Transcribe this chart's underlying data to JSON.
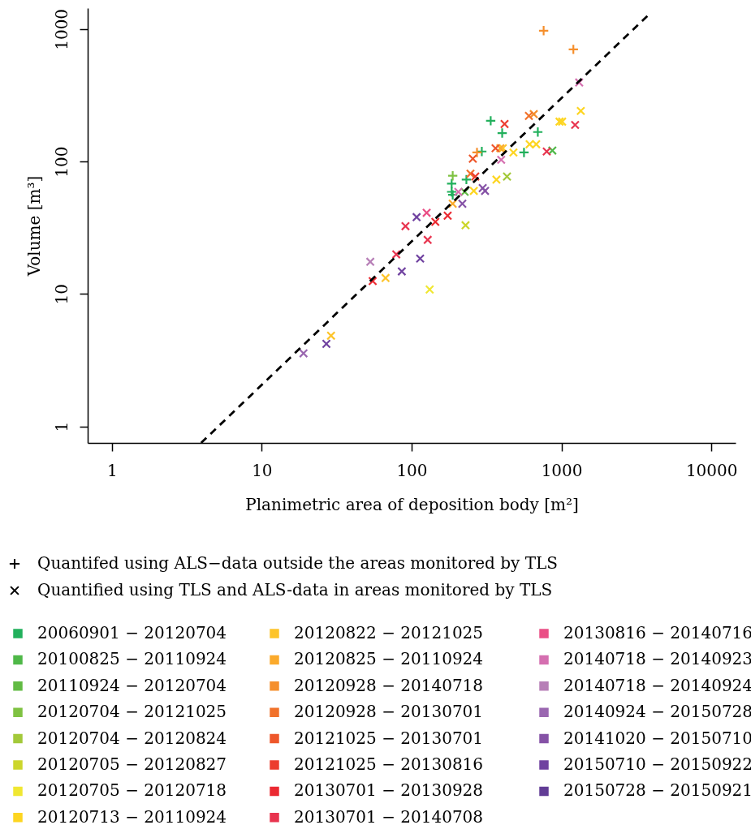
{
  "chart_data": {
    "type": "scatter",
    "xlabel": "Planimetric area of deposition body [m²]",
    "ylabel": "Volume [m³]",
    "log": "xy",
    "xlim": [
      0.69,
      14500
    ],
    "ylim": [
      0.75,
      1440
    ],
    "xticks": [
      1,
      10,
      100,
      1000,
      10000
    ],
    "yticks": [
      1,
      10,
      100,
      1000
    ],
    "legend": "bottom",
    "series": [
      {
        "name": "Quantifed using ALS−data outside the areas monitored by TLS",
        "color": "#000000",
        "marker": "cross"
      },
      {
        "name": "Quantified using TLS and ALS-data in areas monitored by TLS",
        "color": "#000000",
        "marker": "x"
      },
      {
        "name": "20060901 − 20120704",
        "color": "#22b05c",
        "marker": "cross",
        "x": [
          337,
          402,
          695,
          562,
          294,
          185,
          185,
          188,
          232
        ],
        "values": [
          203,
          164,
          167,
          117,
          119,
          68,
          59,
          56,
          73
        ]
      },
      {
        "name": "20100825 − 20110924",
        "color": "#4fb848",
        "marker": "x",
        "x": [
          869
        ],
        "values": [
          121
        ]
      },
      {
        "name": "20110924 − 20120704",
        "color": "#62bb44",
        "marker": "x",
        "x": [
          226
        ],
        "values": [
          59
        ]
      },
      {
        "name": "20120704 − 20121025",
        "color": "#7fc242",
        "marker": "cross",
        "x": [
          188
        ],
        "values": [
          78
        ]
      },
      {
        "name": "20120704 − 20120824",
        "color": "#a3c93a",
        "marker": "x",
        "x": [
          433
        ],
        "values": [
          77
        ]
      },
      {
        "name": "20120705 − 20120827",
        "color": "#ccd62c",
        "marker": "x",
        "x": [
          229
        ],
        "values": [
          33
        ]
      },
      {
        "name": "20120705 − 20120718",
        "color": "#f0e732",
        "marker": "x",
        "x": [
          132
        ],
        "values": [
          10.8
        ]
      },
      {
        "name": "20120713 − 20110924",
        "color": "#fdd521",
        "marker": "x",
        "x": [
          1345,
          970,
          1010,
          613,
          678,
          478,
          260,
          368
        ],
        "values": [
          241,
          200,
          200,
          135,
          135,
          117,
          60,
          73
        ]
      },
      {
        "name": "20120822 − 20121025",
        "color": "#fdc42a",
        "marker": "x",
        "x": [
          67,
          29,
          406
        ],
        "values": [
          13.2,
          4.84,
          126
        ]
      },
      {
        "name": "20120825 − 20110924",
        "color": "#fbaa2c",
        "marker": "x",
        "x": [
          391,
          188
        ],
        "values": [
          126,
          48
        ]
      },
      {
        "name": "20120928 − 20140718",
        "color": "#f58f2c",
        "marker": "cross",
        "x": [
          760,
          1200,
          273
        ],
        "values": [
          973,
          703,
          117
        ]
      },
      {
        "color": "#f58f2c",
        "marker": "x",
        "x": [
          653
        ],
        "values": [
          228
        ]
      },
      {
        "name": "20120928 − 20130701",
        "color": "#f1722b",
        "marker": "x",
        "x": [
          606,
          247
        ],
        "values": [
          221,
          81
        ]
      },
      {
        "name": "20121025 − 20130701",
        "color": "#ee572b",
        "marker": "x",
        "x": [
          363,
          256
        ],
        "values": [
          126,
          105
        ]
      },
      {
        "name": "20121025 − 20130816",
        "color": "#ec3d2e",
        "marker": "x",
        "x": [
          417,
          266
        ],
        "values": [
          192,
          77
        ]
      },
      {
        "name": "20130701 − 20130928",
        "color": "#eb2a32",
        "marker": "x",
        "x": [
          174,
          144,
          55
        ],
        "values": [
          39,
          35,
          12.5
        ]
      },
      {
        "name": "20130701 − 20140708",
        "color": "#e8344f",
        "marker": "x",
        "x": [
          1233,
          797,
          91,
          128,
          79
        ],
        "values": [
          189,
          119,
          32.5,
          25.6,
          19.9
        ]
      },
      {
        "name": "20130816 − 20140716",
        "color": "#ea4f86",
        "marker": "x",
        "x": [
          126
        ],
        "values": [
          41
        ]
      },
      {
        "name": "20140718 − 20140923",
        "color": "#d56fb0",
        "marker": "x",
        "x": [
          1312,
          396,
          205
        ],
        "values": [
          395,
          103,
          59
        ]
      },
      {
        "name": "20140718 − 20140924",
        "color": "#b77fb7",
        "marker": "x",
        "x": [
          53
        ],
        "values": [
          17.5
        ]
      },
      {
        "name": "20140924 − 20150728",
        "color": "#9a67b0",
        "marker": "x",
        "x": [
          19
        ],
        "values": [
          3.56
        ]
      },
      {
        "name": "20141020 − 20150710",
        "color": "#8552a6",
        "marker": "x",
        "x": [
          298,
          309,
          218
        ],
        "values": [
          63,
          60,
          48
        ]
      },
      {
        "name": "20150710 − 20150922",
        "color": "#7042a0",
        "marker": "x",
        "x": [
          108,
          114,
          86,
          27
        ],
        "values": [
          38,
          18.5,
          14.8,
          4.2
        ]
      },
      {
        "name": "20150728 − 20150921",
        "color": "#623d96",
        "marker": "x"
      },
      {
        "type": "line",
        "color": "#000000",
        "line_style": "dashed",
        "marker": "none",
        "x": [
          3.94,
          3830
        ],
        "values": [
          0.75,
          1290
        ]
      }
    ]
  }
}
